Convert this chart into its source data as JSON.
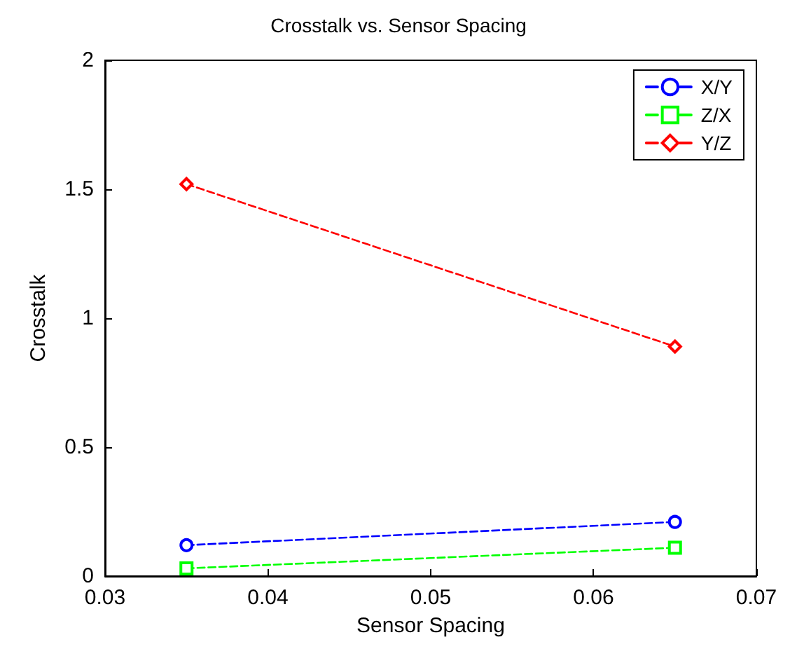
{
  "chart_data": {
    "type": "line",
    "title": "Crosstalk vs. Sensor Spacing",
    "xlabel": "Sensor Spacing",
    "ylabel": "Crosstalk",
    "x": [
      0.035,
      0.065
    ],
    "series": [
      {
        "name": "X/Y",
        "color": "#0000ff",
        "values": [
          0.12,
          0.21
        ],
        "marker": "circle"
      },
      {
        "name": "Z/X",
        "color": "#00ff00",
        "values": [
          0.03,
          0.11
        ],
        "marker": "square"
      },
      {
        "name": "Y/Z",
        "color": "#ff0000",
        "values": [
          1.52,
          0.89
        ],
        "marker": "diamond"
      }
    ],
    "xlim": [
      0.03,
      0.07
    ],
    "xticks": [
      0.03,
      0.04,
      0.05,
      0.06,
      0.07
    ],
    "ylim": [
      0,
      2
    ],
    "yticks": [
      0,
      0.5,
      1,
      1.5,
      2
    ],
    "legend": "top right",
    "line_style": "dashed"
  }
}
